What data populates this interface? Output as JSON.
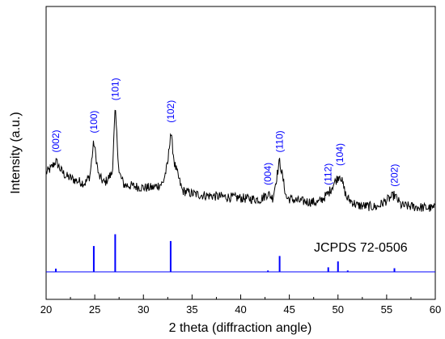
{
  "chart_data": {
    "type": "line",
    "xlabel": "2 theta (diffraction angle)",
    "ylabel": "Intensity (a.u.)",
    "xlim": [
      20,
      60
    ],
    "xticks": [
      20,
      25,
      30,
      35,
      40,
      45,
      50,
      55,
      60
    ],
    "y_tick_labels_shown": false,
    "grid": false,
    "colors": {
      "pattern": "#000000",
      "reference": "#0000ff",
      "labels": "#0000ff",
      "axes": "#000000"
    },
    "series": [
      {
        "x": [
          20,
          20.5,
          21.0,
          21.5,
          22,
          23,
          24,
          24.5,
          24.9,
          25.4,
          26,
          26.8,
          27.1,
          27.5,
          28,
          29,
          30,
          31,
          32,
          32.5,
          32.8,
          33.2,
          34,
          35,
          36,
          38,
          40,
          42,
          42.8,
          43.3,
          44.0,
          44.7,
          46,
          48,
          49.0,
          49.6,
          50.2,
          50.9,
          52,
          54,
          55.8,
          56.5,
          58,
          60
        ],
        "y": [
          0.34,
          0.37,
          0.42,
          0.36,
          0.32,
          0.29,
          0.27,
          0.32,
          0.55,
          0.32,
          0.27,
          0.34,
          0.77,
          0.34,
          0.26,
          0.25,
          0.24,
          0.24,
          0.27,
          0.4,
          0.62,
          0.4,
          0.22,
          0.2,
          0.19,
          0.18,
          0.17,
          0.16,
          0.2,
          0.17,
          0.42,
          0.17,
          0.15,
          0.14,
          0.2,
          0.27,
          0.33,
          0.17,
          0.12,
          0.11,
          0.19,
          0.12,
          0.11,
          0.1
        ]
      }
    ],
    "peak_labels": [
      {
        "text": "(002)",
        "x": 21.0
      },
      {
        "text": "(100)",
        "x": 24.9
      },
      {
        "text": "(101)",
        "x": 27.1
      },
      {
        "text": "(102)",
        "x": 32.8
      },
      {
        "text": "(004)",
        "x": 42.8
      },
      {
        "text": "(110)",
        "x": 44.0
      },
      {
        "text": "(112)",
        "x": 49.0
      },
      {
        "text": "(104)",
        "x": 50.2
      },
      {
        "text": "(202)",
        "x": 55.8
      }
    ],
    "reference": {
      "label": "JCPDS 72-0506",
      "lines": [
        {
          "x": 21.0,
          "h": 0.07
        },
        {
          "x": 24.9,
          "h": 0.57
        },
        {
          "x": 27.1,
          "h": 0.83
        },
        {
          "x": 32.8,
          "h": 0.68
        },
        {
          "x": 42.8,
          "h": 0.03
        },
        {
          "x": 44.0,
          "h": 0.35
        },
        {
          "x": 49.0,
          "h": 0.1
        },
        {
          "x": 50.0,
          "h": 0.23
        },
        {
          "x": 51.0,
          "h": 0.03
        },
        {
          "x": 55.8,
          "h": 0.08
        }
      ]
    }
  }
}
